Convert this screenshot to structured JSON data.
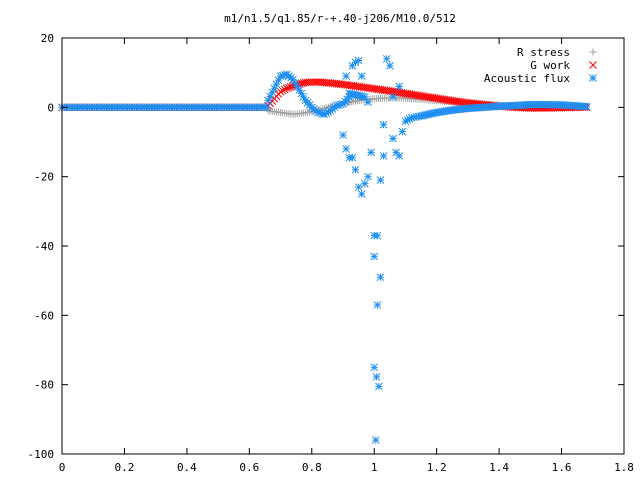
{
  "chart_data": {
    "type": "scatter",
    "title": "m1/n1.5/q1.85/r-+.40-j206/M10.0/512",
    "xlabel": "",
    "ylabel": "",
    "xlim": [
      0,
      1.8
    ],
    "ylim": [
      -100,
      20
    ],
    "x_ticks": [
      0,
      0.2,
      0.4,
      0.6,
      0.8,
      1,
      1.2,
      1.4,
      1.6,
      1.8
    ],
    "x_tick_labels": [
      "0",
      "0.2",
      "0.4",
      "0.6",
      "0.8",
      "1",
      "1.2",
      "1.4",
      "1.6",
      "1.8"
    ],
    "y_ticks": [
      20,
      0,
      -20,
      -40,
      -60,
      -80,
      -100
    ],
    "y_tick_labels": [
      "20",
      "0",
      "-20",
      "-40",
      "-60",
      "-80",
      "-100"
    ],
    "grid": false,
    "legend_position": "top-right",
    "series": [
      {
        "name": "R stress",
        "marker": "plus",
        "color": "#a0a0a0",
        "points": [
          [
            0.66,
            -1.0
          ],
          [
            0.7,
            -1.5
          ],
          [
            0.74,
            -2.0
          ],
          [
            0.78,
            -1.6
          ],
          [
            0.82,
            -0.8
          ],
          [
            0.86,
            0.2
          ],
          [
            0.9,
            1.0
          ],
          [
            0.94,
            1.8
          ],
          [
            0.98,
            2.3
          ],
          [
            1.02,
            2.6
          ],
          [
            1.06,
            2.7
          ],
          [
            1.1,
            2.6
          ],
          [
            1.15,
            2.3
          ],
          [
            1.2,
            1.9
          ],
          [
            1.25,
            1.5
          ],
          [
            1.3,
            1.1
          ],
          [
            1.35,
            0.8
          ],
          [
            1.4,
            0.6
          ],
          [
            1.45,
            0.45
          ],
          [
            1.5,
            0.35
          ],
          [
            1.55,
            0.3
          ],
          [
            1.6,
            0.25
          ],
          [
            1.65,
            0.2
          ],
          [
            1.68,
            0.2
          ]
        ]
      },
      {
        "name": "G work",
        "marker": "cross",
        "color": "#ff0000",
        "points": [
          [
            0.66,
            0.5
          ],
          [
            0.68,
            2.5
          ],
          [
            0.7,
            4.5
          ],
          [
            0.72,
            5.5
          ],
          [
            0.75,
            6.5
          ],
          [
            0.78,
            7.2
          ],
          [
            0.82,
            7.3
          ],
          [
            0.86,
            7.0
          ],
          [
            0.9,
            6.6
          ],
          [
            0.94,
            6.1
          ],
          [
            0.98,
            5.6
          ],
          [
            1.02,
            5.1
          ],
          [
            1.06,
            4.6
          ],
          [
            1.1,
            4.0
          ],
          [
            1.15,
            3.3
          ],
          [
            1.2,
            2.6
          ],
          [
            1.25,
            1.9
          ],
          [
            1.3,
            1.3
          ],
          [
            1.35,
            0.8
          ],
          [
            1.4,
            0.3
          ],
          [
            1.45,
            0.0
          ],
          [
            1.5,
            -0.2
          ],
          [
            1.55,
            -0.2
          ],
          [
            1.6,
            -0.1
          ],
          [
            1.65,
            0.0
          ],
          [
            1.68,
            0.0
          ]
        ]
      },
      {
        "name": "Acoustic flux",
        "marker": "star",
        "color": "#1f8ff0",
        "points": [
          [
            0.66,
            2.0
          ],
          [
            0.68,
            5.5
          ],
          [
            0.7,
            9.0
          ],
          [
            0.72,
            9.5
          ],
          [
            0.74,
            8.0
          ],
          [
            0.76,
            5.0
          ],
          [
            0.78,
            2.0
          ],
          [
            0.8,
            0.0
          ],
          [
            0.82,
            -1.5
          ],
          [
            0.84,
            -2.0
          ],
          [
            0.86,
            -1.0
          ],
          [
            0.88,
            0.5
          ],
          [
            0.9,
            1.0
          ],
          [
            0.92,
            3.0
          ],
          [
            0.9,
            -8.0
          ],
          [
            0.91,
            -12.0
          ],
          [
            0.92,
            -14.5
          ],
          [
            0.93,
            -14.5
          ],
          [
            0.94,
            -18.0
          ],
          [
            0.95,
            -23.0
          ],
          [
            0.96,
            -25.0
          ],
          [
            0.97,
            -22.0
          ],
          [
            0.98,
            -20.0
          ],
          [
            0.99,
            -13.0
          ],
          [
            0.93,
            12.0
          ],
          [
            0.94,
            13.0
          ],
          [
            0.95,
            13.5
          ],
          [
            0.96,
            9.0
          ],
          [
            0.91,
            9.0
          ],
          [
            0.92,
            4.0
          ],
          [
            0.97,
            3.0
          ],
          [
            0.98,
            1.5
          ],
          [
            1.0,
            -37.0
          ],
          [
            1.01,
            -37.0
          ],
          [
            1.0,
            -43.0
          ],
          [
            1.02,
            -49.0
          ],
          [
            1.01,
            -57.0
          ],
          [
            1.0,
            -75.0
          ],
          [
            1.015,
            -80.5
          ],
          [
            1.005,
            -96.0
          ],
          [
            1.02,
            -21.0
          ],
          [
            1.03,
            -14.0
          ],
          [
            1.03,
            -5.0
          ],
          [
            1.04,
            14.0
          ],
          [
            1.05,
            12.0
          ],
          [
            1.06,
            3.0
          ],
          [
            1.06,
            -9.0
          ],
          [
            1.07,
            -13.0
          ],
          [
            1.08,
            -14.0
          ],
          [
            1.08,
            6.0
          ],
          [
            1.09,
            -7.0
          ],
          [
            1.1,
            -4.0
          ],
          [
            1.12,
            -3.0
          ],
          [
            1.15,
            -2.5
          ],
          [
            1.2,
            -1.5
          ],
          [
            1.25,
            -0.8
          ],
          [
            1.3,
            -0.3
          ],
          [
            1.35,
            0.0
          ],
          [
            1.4,
            0.3
          ],
          [
            1.45,
            0.5
          ],
          [
            1.5,
            0.8
          ],
          [
            1.55,
            0.8
          ],
          [
            1.6,
            0.7
          ],
          [
            1.65,
            0.4
          ],
          [
            1.68,
            0.2
          ]
        ]
      }
    ]
  }
}
